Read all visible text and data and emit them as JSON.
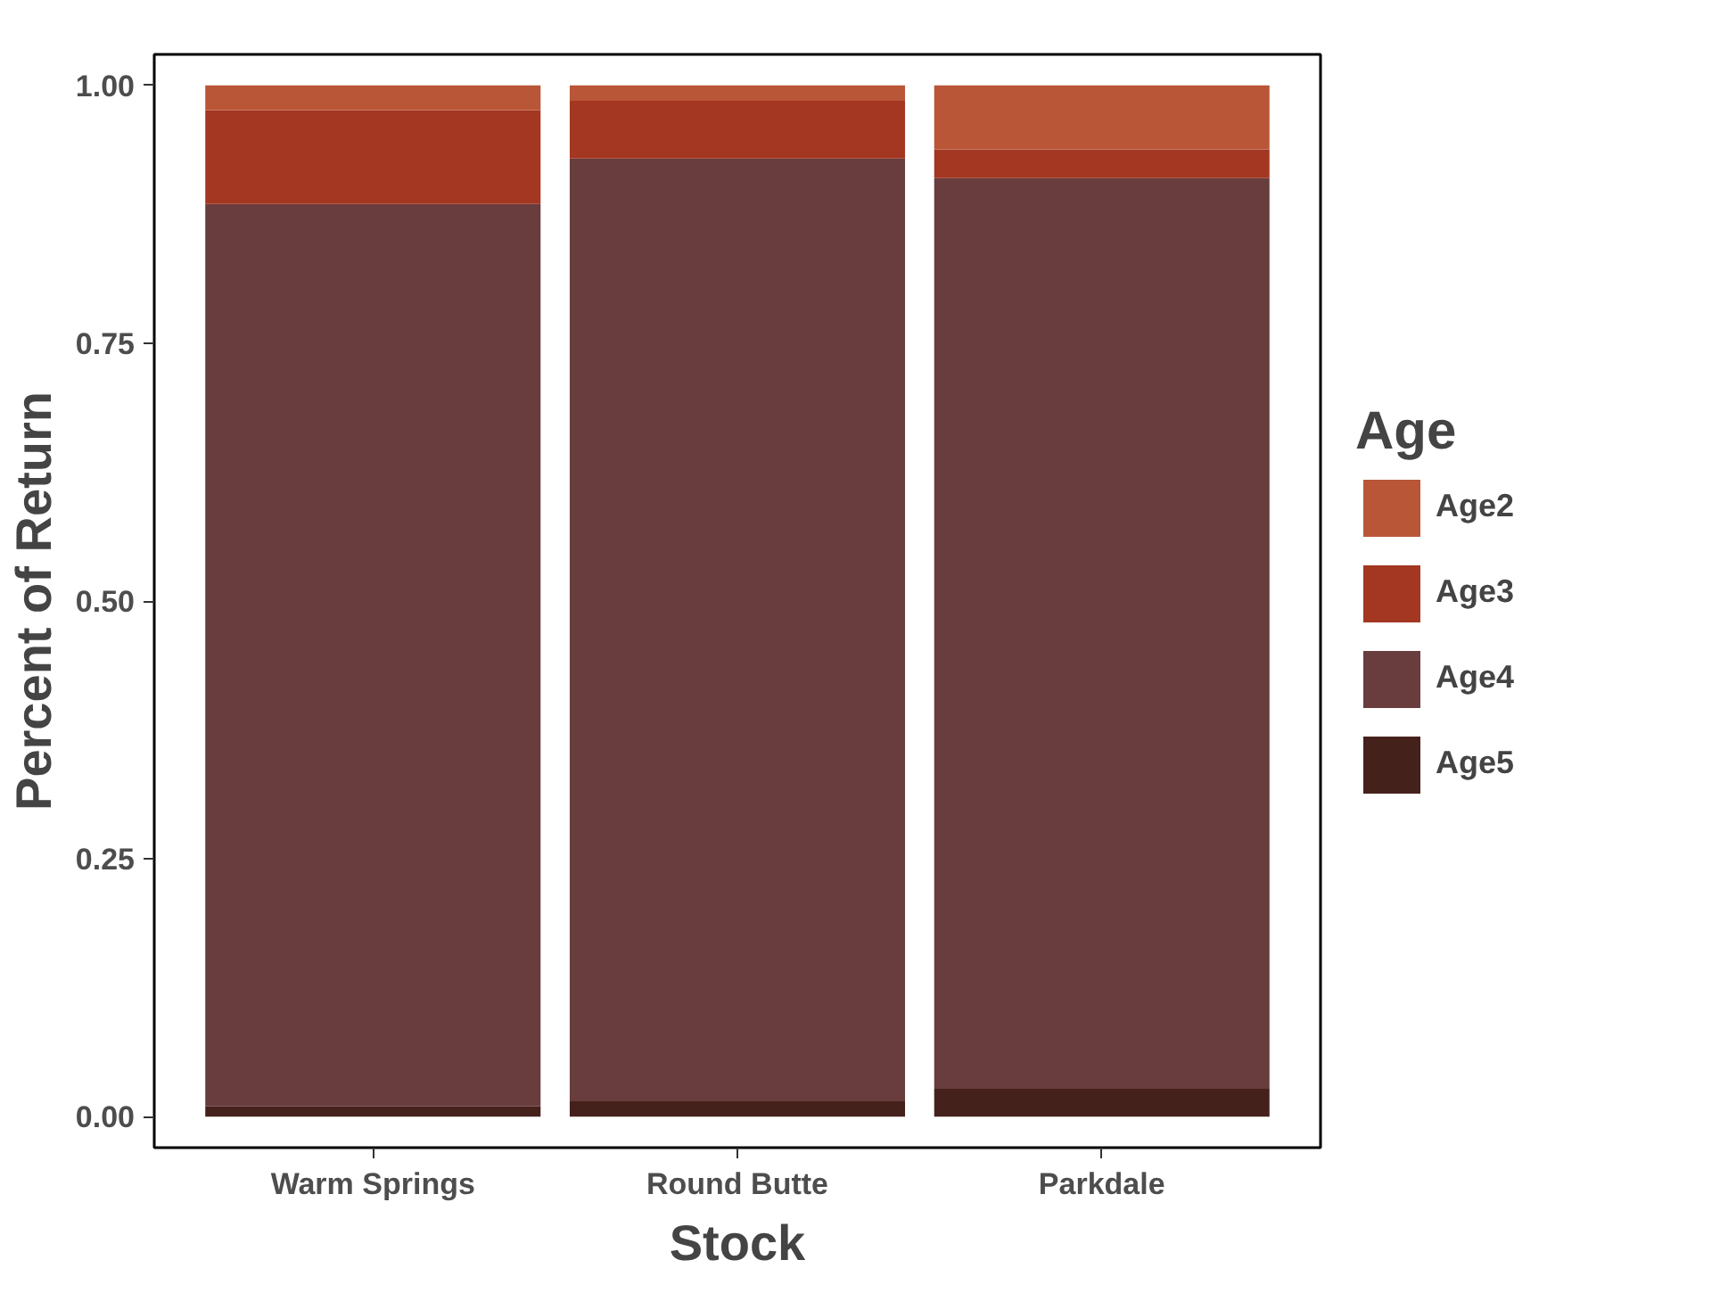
{
  "chart_data": {
    "type": "bar",
    "stacked": true,
    "xlabel": "Stock",
    "ylabel": "Percent of Return",
    "legend_title": "Age",
    "legend": "right",
    "categories": [
      "Warm Springs",
      "Round Butte",
      "Parkdale"
    ],
    "ylim": [
      -0.03,
      1.03
    ],
    "yticks": [
      {
        "value": 0,
        "label": "0.00"
      },
      {
        "value": 0.25,
        "label": "0.25"
      },
      {
        "value": 0.5,
        "label": "0.50"
      },
      {
        "value": 0.75,
        "label": "0.75"
      },
      {
        "value": 1,
        "label": "1.00"
      }
    ],
    "grid": false,
    "series": [
      {
        "name": "Age5",
        "color": "#45211b",
        "values": [
          0.01,
          0.015,
          0.027
        ]
      },
      {
        "name": "Age4",
        "color": "#693c3e",
        "values": [
          0.875,
          0.914,
          0.883
        ]
      },
      {
        "name": "Age3",
        "color": "#a33722",
        "values": [
          0.091,
          0.056,
          0.028
        ]
      },
      {
        "name": "Age2",
        "color": "#b95637",
        "values": [
          0.024,
          0.015,
          0.062
        ]
      }
    ]
  }
}
